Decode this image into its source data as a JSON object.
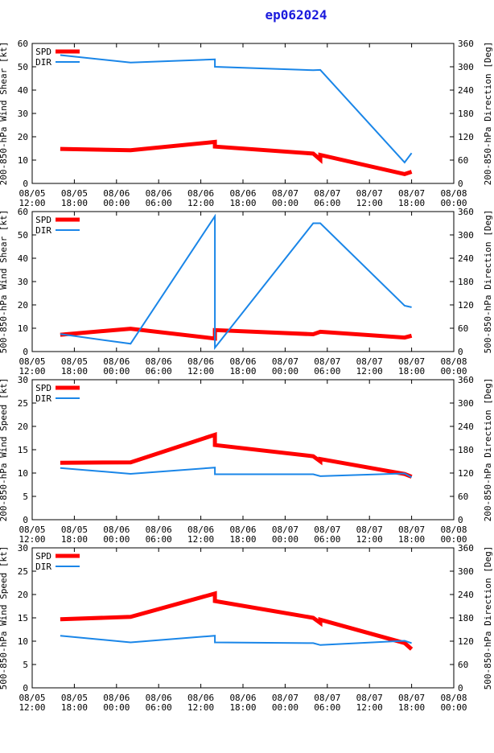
{
  "page": {
    "title": "ep062024"
  },
  "x_ticks": [
    {
      "d": "08/05",
      "t": "12:00"
    },
    {
      "d": "08/05",
      "t": "18:00"
    },
    {
      "d": "08/06",
      "t": "00:00"
    },
    {
      "d": "08/06",
      "t": "06:00"
    },
    {
      "d": "08/06",
      "t": "12:00"
    },
    {
      "d": "08/06",
      "t": "18:00"
    },
    {
      "d": "08/07",
      "t": "00:00"
    },
    {
      "d": "08/07",
      "t": "06:00"
    },
    {
      "d": "08/07",
      "t": "12:00"
    },
    {
      "d": "08/07",
      "t": "18:00"
    },
    {
      "d": "08/08",
      "t": "00:00"
    }
  ],
  "x_axis_hours": [
    0,
    60
  ],
  "colors": {
    "spd": "#ff0000",
    "dir": "#1a86e8",
    "title": "#1b1bdd"
  },
  "chart_data": [
    {
      "type": "line",
      "ylabel_left": "200-850-hPa Wind Shear [kt]",
      "ylabel_right": "200-850-hPa Direction [Deg]",
      "ylim_left": [
        0,
        60
      ],
      "yticks_left": [
        0,
        10,
        20,
        30,
        40,
        50,
        60
      ],
      "ylim_right": [
        0,
        360
      ],
      "yticks_right": [
        0,
        60,
        120,
        180,
        240,
        300,
        360
      ],
      "series": [
        {
          "name": "SPD",
          "axis": "left",
          "points": [
            [
              4,
              14.8
            ],
            [
              14,
              14.2
            ],
            [
              26,
              17.8
            ],
            [
              26,
              15.8
            ],
            [
              40,
              12.8
            ],
            [
              41,
              10.2
            ],
            [
              41,
              12.2
            ],
            [
              53,
              4
            ],
            [
              54,
              5
            ]
          ]
        },
        {
          "name": "DIR",
          "axis": "right",
          "points": [
            [
              4,
              330
            ],
            [
              14,
              311
            ],
            [
              26,
              319
            ],
            [
              26,
              300
            ],
            [
              40,
              291
            ],
            [
              41,
              292
            ],
            [
              53,
              54
            ],
            [
              54,
              78
            ]
          ]
        }
      ]
    },
    {
      "type": "line",
      "ylabel_left": "500-850-hPa Wind Shear [kt]",
      "ylabel_right": "500-850-hPa Direction [Deg]",
      "ylim_left": [
        0,
        60
      ],
      "yticks_left": [
        0,
        10,
        20,
        30,
        40,
        50,
        60
      ],
      "ylim_right": [
        0,
        360
      ],
      "yticks_right": [
        0,
        60,
        120,
        180,
        240,
        300,
        360
      ],
      "series": [
        {
          "name": "SPD",
          "axis": "left",
          "points": [
            [
              4,
              7.2
            ],
            [
              14,
              9.8
            ],
            [
              26,
              5.6
            ],
            [
              26,
              9.2
            ],
            [
              40,
              7.4
            ],
            [
              41,
              8.5
            ],
            [
              53,
              6
            ],
            [
              54,
              6.8
            ]
          ]
        },
        {
          "name": "DIR",
          "axis": "right",
          "points": [
            [
              4,
              45
            ],
            [
              14,
              20
            ],
            [
              26,
              348
            ],
            [
              26,
              10
            ],
            [
              40,
              330
            ],
            [
              41,
              330
            ],
            [
              53,
              118
            ],
            [
              54,
              114
            ]
          ]
        }
      ]
    },
    {
      "type": "line",
      "ylabel_left": "200-850-hPa Wind Speed [kt]",
      "ylabel_right": "200-850-hPa Direction [Deg]",
      "ylim_left": [
        0,
        30
      ],
      "yticks_left": [
        0,
        5,
        10,
        15,
        20,
        25,
        30
      ],
      "ylim_right": [
        0,
        360
      ],
      "yticks_right": [
        0,
        60,
        120,
        180,
        240,
        300,
        360
      ],
      "series": [
        {
          "name": "SPD",
          "axis": "left",
          "points": [
            [
              4,
              12.2
            ],
            [
              14,
              12.3
            ],
            [
              26,
              18.2
            ],
            [
              26,
              16
            ],
            [
              40,
              13.6
            ],
            [
              41,
              12.5
            ],
            [
              41,
              13
            ],
            [
              53,
              9.8
            ],
            [
              54,
              9.2
            ]
          ]
        },
        {
          "name": "DIR",
          "axis": "right",
          "points": [
            [
              4,
              133
            ],
            [
              14,
              118
            ],
            [
              26,
              134
            ],
            [
              26,
              117
            ],
            [
              40,
              117
            ],
            [
              41,
              112
            ],
            [
              53,
              119
            ],
            [
              54,
              109
            ]
          ]
        }
      ]
    },
    {
      "type": "line",
      "ylabel_left": "500-850-hPa Wind Speed [kt]",
      "ylabel_right": "500-850-hPa Direction [Deg]",
      "ylim_left": [
        0,
        30
      ],
      "yticks_left": [
        0,
        5,
        10,
        15,
        20,
        25,
        30
      ],
      "ylim_right": [
        0,
        360
      ],
      "yticks_right": [
        0,
        60,
        120,
        180,
        240,
        300,
        360
      ],
      "series": [
        {
          "name": "SPD",
          "axis": "left",
          "points": [
            [
              4,
              14.7
            ],
            [
              14,
              15.2
            ],
            [
              26,
              20.2
            ],
            [
              26,
              18.6
            ],
            [
              40,
              15
            ],
            [
              41,
              13.9
            ],
            [
              41,
              14.6
            ],
            [
              53,
              9.6
            ],
            [
              54,
              8.3
            ]
          ]
        },
        {
          "name": "DIR",
          "axis": "right",
          "points": [
            [
              4,
              134
            ],
            [
              14,
              117
            ],
            [
              26,
              134
            ],
            [
              26,
              117
            ],
            [
              40,
              115
            ],
            [
              41,
              110
            ],
            [
              53,
              121
            ],
            [
              54,
              115
            ]
          ]
        }
      ]
    }
  ]
}
